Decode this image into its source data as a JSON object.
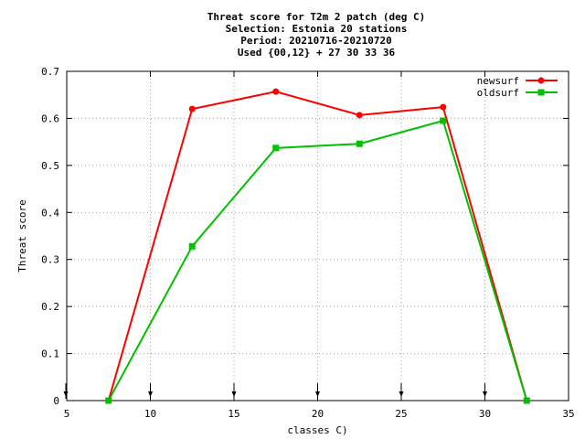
{
  "chart_data": {
    "type": "line",
    "title_lines": [
      "Threat score  for T2m 2 patch (deg C)",
      "Selection: Estonia     20 stations",
      "Period: 20210716-20210720",
      "Used {00,12} + 27 30 33 36"
    ],
    "xlabel": "classes C)",
    "ylabel": "Threat score",
    "xlim": [
      5,
      35
    ],
    "ylim": [
      0,
      0.7
    ],
    "xticks": [
      5,
      10,
      15,
      20,
      25,
      30,
      35
    ],
    "yticks": [
      0,
      0.1,
      0.2,
      0.3,
      0.4,
      0.5,
      0.6,
      0.7
    ],
    "xtick_labels": [
      "5",
      "10",
      "15",
      "20",
      "25",
      "30",
      "35"
    ],
    "ytick_labels": [
      "0",
      "0.1",
      "0.2",
      "0.3",
      "0.4",
      "0.5",
      "0.6",
      "0.7"
    ],
    "grid": true,
    "legend_position": "top-right",
    "series": [
      {
        "name": "newsurf",
        "color": "#ff0000",
        "x": [
          7.5,
          12.5,
          17.5,
          22.5,
          27.5,
          32.5
        ],
        "y": [
          0.0,
          0.62,
          0.657,
          0.607,
          0.624,
          0.0
        ]
      },
      {
        "name": "oldsurf",
        "color": "#00c000",
        "x": [
          7.5,
          12.5,
          17.5,
          22.5,
          27.5,
          32.5
        ],
        "y": [
          0.0,
          0.328,
          0.537,
          0.546,
          0.595,
          0.0
        ]
      }
    ],
    "bottom_markers_x": [
      5,
      10,
      15,
      20,
      25,
      30
    ]
  }
}
